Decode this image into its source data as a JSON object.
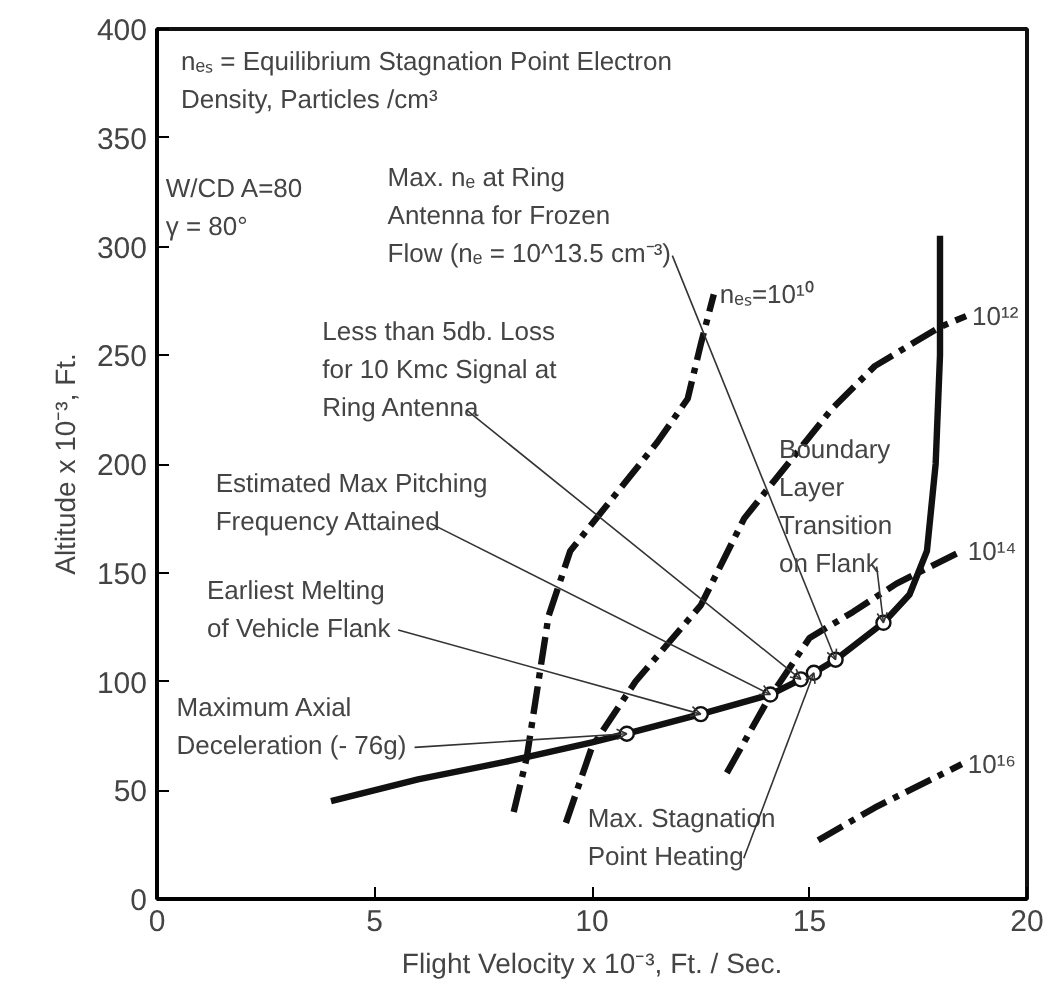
{
  "chart_data": {
    "type": "line",
    "xlabel": "Flight Velocity x 10⁻³, Ft. / Sec.",
    "ylabel": "Altitude x 10⁻³, Ft.",
    "xlim": [
      0,
      20
    ],
    "ylim": [
      0,
      400
    ],
    "xticks": [
      0,
      5,
      10,
      15,
      20
    ],
    "yticks": [
      0,
      50,
      100,
      150,
      200,
      250,
      300,
      350,
      400
    ],
    "grid": false,
    "series": [
      {
        "color": "#111111",
        "line_style": "solid",
        "x": [
          4,
          6,
          8,
          10,
          10.8,
          12.5,
          14.1,
          14.8,
          15.1,
          15.6,
          16.7,
          17.3,
          17.7,
          17.9,
          18,
          18
        ],
        "values": [
          45,
          55,
          63,
          72,
          76,
          85,
          94,
          101,
          104,
          110,
          127,
          140,
          160,
          200,
          250,
          305
        ]
      },
      {
        "name": "nₑₛ=10¹⁰",
        "color": "#111111",
        "line_style": "dashdot",
        "x": [
          8.2,
          8.5,
          9,
          9.5,
          10.5,
          11.5,
          12.2,
          12.5,
          12.8
        ],
        "values": [
          40,
          65,
          130,
          160,
          185,
          210,
          230,
          255,
          278
        ]
      },
      {
        "name": "10¹²",
        "color": "#111111",
        "line_style": "dashdot",
        "x": [
          9.4,
          10,
          11,
          12.5,
          13.5,
          14.5,
          15.5,
          16.5,
          18,
          18.6
        ],
        "values": [
          35,
          70,
          100,
          135,
          175,
          200,
          225,
          245,
          263,
          268
        ]
      },
      {
        "name": "10¹⁴",
        "color": "#111111",
        "line_style": "dashdot",
        "x": [
          13.1,
          14,
          15,
          16,
          17,
          18.5
        ],
        "values": [
          58,
          90,
          120,
          132,
          145,
          160
        ]
      },
      {
        "name": "10¹⁶",
        "color": "#111111",
        "line_style": "dashdot",
        "x": [
          15.2,
          16.5,
          18.5
        ],
        "values": [
          27,
          42,
          62
        ]
      },
      {
        "type": "scatter",
        "marker": "circle",
        "color": "#111111",
        "x": [
          10.8,
          12.5,
          14.1,
          14.8,
          15.1,
          15.6,
          16.7
        ],
        "values": [
          76,
          85,
          94,
          101,
          104,
          110,
          127
        ]
      }
    ],
    "annotations": [
      "nₑₛ = Equilibrium Stagnation Point Electron\nDensity, Particles /cm³",
      "W/CD A=80\nγ = 80°",
      {
        "text": "Max. nₑ at Ring\nAntenna for Frozen\nFlow (nₑ = 10^13.5 cm⁻³)",
        "x": 15.6,
        "y": 110
      },
      {
        "text": "Less than 5db. Loss\nfor 10 Kmc Signal at\nRing Antenna",
        "x": 14.8,
        "y": 101
      },
      {
        "text": "Estimated Max Pitching\nFrequency Attained",
        "x": 14.1,
        "y": 94
      },
      {
        "text": "Earliest Melting\nof Vehicle Flank",
        "x": 12.5,
        "y": 85
      },
      {
        "text": "Maximum Axial\nDeceleration (- 76g)",
        "x": 10.8,
        "y": 76
      },
      {
        "text": "Boundary\nLayer\nTransition\non Flank",
        "x": 16.7,
        "y": 127
      },
      {
        "text": "Max. Stagnation\nPoint Heating",
        "x": 15.1,
        "y": 104
      }
    ]
  }
}
